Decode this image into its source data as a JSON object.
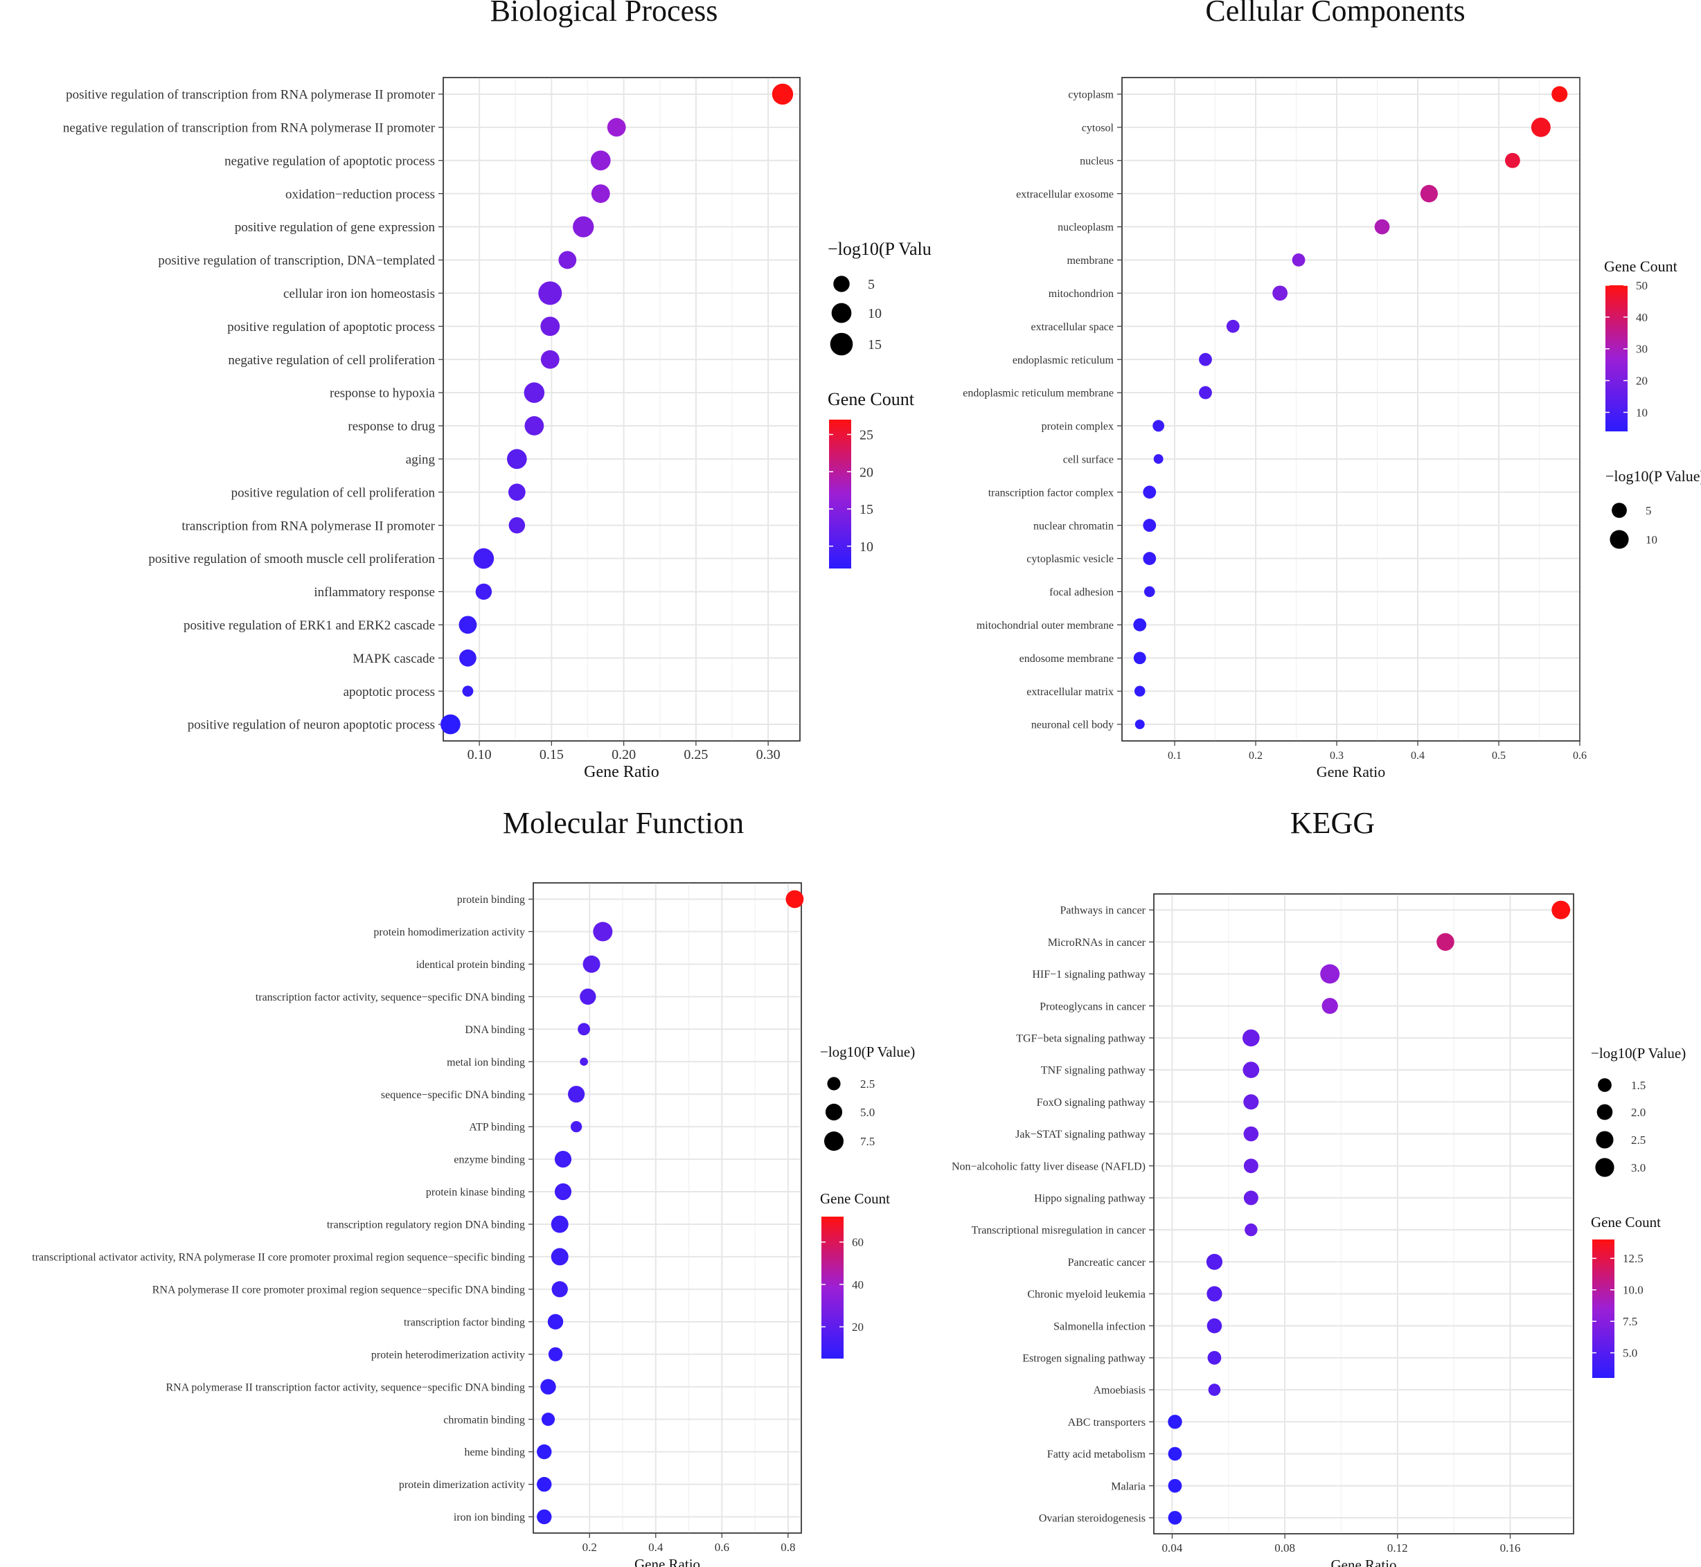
{
  "colors": {
    "low": "#2b1bff",
    "mid": "#9c1fd6",
    "high": "#ff1010",
    "grid": "#e6e6e6",
    "frame": "#333333"
  },
  "chart_data": [
    {
      "type": "scatter",
      "title": "Biological Process",
      "xlabel": "Gene Ratio",
      "xlim": [
        0.075,
        0.322
      ],
      "xticks": [
        0.1,
        0.15,
        0.2,
        0.25,
        0.3
      ],
      "xtick_labels": [
        "0.10",
        "0.15",
        "0.20",
        "0.25",
        "0.30"
      ],
      "size_legend": {
        "title": "−log10(P Valu",
        "labels": [
          "5",
          "10",
          "15"
        ],
        "values": [
          5,
          10,
          15
        ]
      },
      "color_legend": {
        "title": "Gene Count",
        "range": [
          7,
          27
        ],
        "ticks": [
          25,
          20,
          15,
          10
        ],
        "tick_labels": [
          "25",
          "20",
          "15",
          "10"
        ]
      },
      "points": [
        {
          "term": "positive regulation of transcription from RNA polymerase II promoter",
          "ratio": 0.31,
          "count": 27,
          "logp": 12
        },
        {
          "term": "negative regulation of transcription from RNA polymerase II promoter",
          "ratio": 0.195,
          "count": 17,
          "logp": 8
        },
        {
          "term": "negative regulation of apoptotic process",
          "ratio": 0.184,
          "count": 16,
          "logp": 10
        },
        {
          "term": "oxidation−reduction process",
          "ratio": 0.184,
          "count": 16,
          "logp": 8
        },
        {
          "term": "positive regulation of gene expression",
          "ratio": 0.172,
          "count": 15,
          "logp": 12
        },
        {
          "term": "positive regulation of transcription, DNA−templated",
          "ratio": 0.161,
          "count": 14,
          "logp": 7
        },
        {
          "term": "cellular iron ion homeostasis",
          "ratio": 0.149,
          "count": 13,
          "logp": 17
        },
        {
          "term": "positive regulation of apoptotic process",
          "ratio": 0.149,
          "count": 13,
          "logp": 9
        },
        {
          "term": "negative regulation of cell proliferation",
          "ratio": 0.149,
          "count": 13,
          "logp": 8
        },
        {
          "term": "response to hypoxia",
          "ratio": 0.138,
          "count": 12,
          "logp": 11
        },
        {
          "term": "response to drug",
          "ratio": 0.138,
          "count": 12,
          "logp": 9
        },
        {
          "term": "aging",
          "ratio": 0.126,
          "count": 11,
          "logp": 10
        },
        {
          "term": "positive regulation of cell proliferation",
          "ratio": 0.126,
          "count": 11,
          "logp": 6
        },
        {
          "term": "transcription from RNA polymerase II promoter",
          "ratio": 0.126,
          "count": 11,
          "logp": 5
        },
        {
          "term": "positive regulation of smooth muscle cell proliferation",
          "ratio": 0.103,
          "count": 9,
          "logp": 11
        },
        {
          "term": "inflammatory response",
          "ratio": 0.103,
          "count": 9,
          "logp": 5
        },
        {
          "term": "positive regulation of ERK1 and ERK2 cascade",
          "ratio": 0.092,
          "count": 8,
          "logp": 7
        },
        {
          "term": "MAPK cascade",
          "ratio": 0.092,
          "count": 8,
          "logp": 6
        },
        {
          "term": "apoptotic process",
          "ratio": 0.092,
          "count": 8,
          "logp": 1
        },
        {
          "term": "positive regulation of neuron apoptotic process",
          "ratio": 0.08,
          "count": 7,
          "logp": 10
        }
      ]
    },
    {
      "type": "scatter",
      "title": "Cellular Components",
      "xlabel": "Gene Ratio",
      "xlim": [
        0.035,
        0.6
      ],
      "xticks": [
        0.1,
        0.2,
        0.3,
        0.4,
        0.5,
        0.6
      ],
      "xtick_labels": [
        "0.1",
        "0.2",
        "0.3",
        "0.4",
        "0.5",
        "0.6"
      ],
      "size_legend": {
        "title": "−log10(P Value)",
        "labels": [
          "5",
          "10"
        ],
        "values": [
          5,
          10
        ]
      },
      "color_legend": {
        "title": "Gene Count",
        "range": [
          4,
          50
        ],
        "ticks": [
          50,
          40,
          30,
          20,
          10
        ],
        "tick_labels": [
          "50",
          "40",
          "30",
          "20",
          "10"
        ]
      },
      "points": [
        {
          "term": "cytoplasm",
          "ratio": 0.575,
          "count": 50,
          "logp": 6
        },
        {
          "term": "cytosol",
          "ratio": 0.552,
          "count": 48,
          "logp": 11
        },
        {
          "term": "nucleus",
          "ratio": 0.517,
          "count": 45,
          "logp": 5
        },
        {
          "term": "extracellular exosome",
          "ratio": 0.414,
          "count": 36,
          "logp": 8
        },
        {
          "term": "nucleoplasm",
          "ratio": 0.356,
          "count": 31,
          "logp": 5
        },
        {
          "term": "membrane",
          "ratio": 0.253,
          "count": 22,
          "logp": 3
        },
        {
          "term": "mitochondrion",
          "ratio": 0.23,
          "count": 20,
          "logp": 5
        },
        {
          "term": "extracellular space",
          "ratio": 0.172,
          "count": 15,
          "logp": 3
        },
        {
          "term": "endoplasmic reticulum",
          "ratio": 0.138,
          "count": 12,
          "logp": 3
        },
        {
          "term": "endoplasmic reticulum membrane",
          "ratio": 0.138,
          "count": 12,
          "logp": 3
        },
        {
          "term": "protein complex",
          "ratio": 0.08,
          "count": 7,
          "logp": 2
        },
        {
          "term": "cell surface",
          "ratio": 0.08,
          "count": 7,
          "logp": 1
        },
        {
          "term": "transcription factor complex",
          "ratio": 0.069,
          "count": 6,
          "logp": 3
        },
        {
          "term": "nuclear chromatin",
          "ratio": 0.069,
          "count": 6,
          "logp": 3
        },
        {
          "term": "cytoplasmic vesicle",
          "ratio": 0.069,
          "count": 6,
          "logp": 3
        },
        {
          "term": "focal adhesion",
          "ratio": 0.069,
          "count": 6,
          "logp": 1.5
        },
        {
          "term": "mitochondrial outer membrane",
          "ratio": 0.057,
          "count": 5,
          "logp": 3
        },
        {
          "term": "endosome membrane",
          "ratio": 0.057,
          "count": 5,
          "logp": 2.5
        },
        {
          "term": "extracellular matrix",
          "ratio": 0.057,
          "count": 5,
          "logp": 1.5
        },
        {
          "term": "neuronal cell body",
          "ratio": 0.057,
          "count": 5,
          "logp": 1
        }
      ]
    },
    {
      "type": "scatter",
      "title": "Molecular Function",
      "xlabel": "Gene Ratio",
      "xlim": [
        0.03,
        0.84
      ],
      "xticks": [
        0.2,
        0.4,
        0.6,
        0.8
      ],
      "xtick_labels": [
        "0.2",
        "0.4",
        "0.6",
        "0.8"
      ],
      "size_legend": {
        "title": "−log10(P Value)",
        "labels": [
          "2.5",
          "5.0",
          "7.5"
        ],
        "values": [
          2.5,
          5.0,
          7.5
        ]
      },
      "color_legend": {
        "title": "Gene Count",
        "range": [
          5,
          72
        ],
        "ticks": [
          60,
          40,
          20
        ],
        "tick_labels": [
          "60",
          "40",
          "20"
        ]
      },
      "points": [
        {
          "term": "protein binding",
          "ratio": 0.82,
          "count": 72,
          "logp": 6
        },
        {
          "term": "protein homodimerization activity",
          "ratio": 0.24,
          "count": 21,
          "logp": 7.5
        },
        {
          "term": "identical protein binding",
          "ratio": 0.206,
          "count": 18,
          "logp": 5.5
        },
        {
          "term": "transcription factor activity, sequence−specific DNA binding",
          "ratio": 0.195,
          "count": 17,
          "logp": 4.5
        },
        {
          "term": "DNA binding",
          "ratio": 0.183,
          "count": 16,
          "logp": 2
        },
        {
          "term": "metal ion binding",
          "ratio": 0.183,
          "count": 16,
          "logp": 0.5
        },
        {
          "term": "sequence−specific DNA binding",
          "ratio": 0.16,
          "count": 14,
          "logp": 5
        },
        {
          "term": "ATP binding",
          "ratio": 0.16,
          "count": 14,
          "logp": 1.5
        },
        {
          "term": "enzyme binding",
          "ratio": 0.12,
          "count": 11,
          "logp": 5
        },
        {
          "term": "protein kinase binding",
          "ratio": 0.12,
          "count": 11,
          "logp": 5
        },
        {
          "term": "transcription regulatory region DNA binding",
          "ratio": 0.11,
          "count": 10,
          "logp": 5.5
        },
        {
          "term": "transcriptional activator activity, RNA polymerase II core promoter proximal region sequence−specific binding",
          "ratio": 0.11,
          "count": 10,
          "logp": 5.5
        },
        {
          "term": "RNA polymerase II core promoter proximal region sequence−specific DNA binding",
          "ratio": 0.11,
          "count": 10,
          "logp": 4.5
        },
        {
          "term": "transcription factor binding",
          "ratio": 0.097,
          "count": 8,
          "logp": 4
        },
        {
          "term": "protein heterodimerization activity",
          "ratio": 0.097,
          "count": 8,
          "logp": 3
        },
        {
          "term": "RNA polymerase II transcription factor activity, sequence−specific DNA binding",
          "ratio": 0.075,
          "count": 7,
          "logp": 4
        },
        {
          "term": "chromatin binding",
          "ratio": 0.075,
          "count": 7,
          "logp": 2.5
        },
        {
          "term": "heme binding",
          "ratio": 0.063,
          "count": 6,
          "logp": 3.5
        },
        {
          "term": "protein dimerization activity",
          "ratio": 0.063,
          "count": 6,
          "logp": 3.5
        },
        {
          "term": "iron ion binding",
          "ratio": 0.063,
          "count": 6,
          "logp": 3.5
        }
      ]
    },
    {
      "type": "scatter",
      "title": "KEGG",
      "xlabel": "Gene Ratio",
      "xlim": [
        0.0335,
        0.1825
      ],
      "xticks": [
        0.04,
        0.08,
        0.12,
        0.16
      ],
      "xtick_labels": [
        "0.04",
        "0.08",
        "0.12",
        "0.16"
      ],
      "size_legend": {
        "title": "−log10(P Value)",
        "labels": [
          "1.5",
          "2.0",
          "2.5",
          "3.0"
        ],
        "values": [
          1.5,
          2.0,
          2.5,
          3.0
        ]
      },
      "color_legend": {
        "title": "Gene Count",
        "range": [
          3,
          14
        ],
        "ticks": [
          12.5,
          10.0,
          7.5,
          5.0
        ],
        "tick_labels": [
          "12.5",
          "10.0",
          "7.5",
          "5.0"
        ]
      },
      "points": [
        {
          "term": "Pathways in cancer",
          "ratio": 0.178,
          "count": 14,
          "logp": 2.9
        },
        {
          "term": "MicroRNAs in cancer",
          "ratio": 0.137,
          "count": 11,
          "logp": 2.6
        },
        {
          "term": "HIF−1 signaling pathway",
          "ratio": 0.096,
          "count": 8,
          "logp": 3.2
        },
        {
          "term": "Proteoglycans in cancer",
          "ratio": 0.096,
          "count": 8,
          "logp": 2.1
        },
        {
          "term": "TGF−beta signaling pathway",
          "ratio": 0.068,
          "count": 6,
          "logp": 2.4
        },
        {
          "term": "TNF signaling pathway",
          "ratio": 0.068,
          "count": 6,
          "logp": 2.2
        },
        {
          "term": "FoxO signaling pathway",
          "ratio": 0.068,
          "count": 6,
          "logp": 1.9
        },
        {
          "term": "Jak−STAT signaling pathway",
          "ratio": 0.068,
          "count": 6,
          "logp": 1.8
        },
        {
          "term": "Non−alcoholic fatty liver disease (NAFLD)",
          "ratio": 0.068,
          "count": 6,
          "logp": 1.7
        },
        {
          "term": "Hippo signaling pathway",
          "ratio": 0.068,
          "count": 6,
          "logp": 1.7
        },
        {
          "term": "Transcriptional misregulation in cancer",
          "ratio": 0.068,
          "count": 6,
          "logp": 1.3
        },
        {
          "term": "Pancreatic cancer",
          "ratio": 0.055,
          "count": 5,
          "logp": 2.1
        },
        {
          "term": "Chronic myeloid leukemia",
          "ratio": 0.055,
          "count": 5,
          "logp": 1.9
        },
        {
          "term": "Salmonella infection",
          "ratio": 0.055,
          "count": 5,
          "logp": 1.8
        },
        {
          "term": "Estrogen signaling pathway",
          "ratio": 0.055,
          "count": 5,
          "logp": 1.5
        },
        {
          "term": "Amoebiasis",
          "ratio": 0.055,
          "count": 5,
          "logp": 1.2
        },
        {
          "term": "ABC transporters",
          "ratio": 0.041,
          "count": 3,
          "logp": 1.6
        },
        {
          "term": "Fatty acid metabolism",
          "ratio": 0.041,
          "count": 3,
          "logp": 1.5
        },
        {
          "term": "Malaria",
          "ratio": 0.041,
          "count": 3,
          "logp": 1.5
        },
        {
          "term": "Ovarian steroidogenesis",
          "ratio": 0.041,
          "count": 3,
          "logp": 1.5
        }
      ]
    }
  ]
}
